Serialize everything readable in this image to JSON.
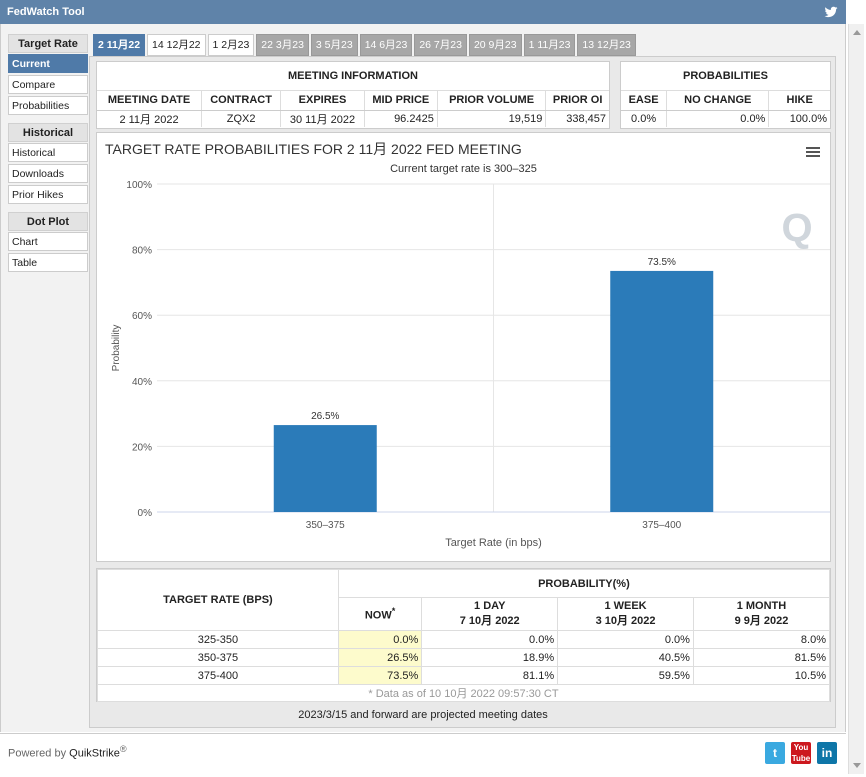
{
  "app": {
    "title": "FedWatch Tool"
  },
  "sidebar": {
    "sections": [
      {
        "header": "Target Rate",
        "items": [
          {
            "label": "Current",
            "active": true
          },
          {
            "label": "Compare"
          },
          {
            "label": "Probabilities"
          }
        ]
      },
      {
        "header": "Historical",
        "items": [
          {
            "label": "Historical"
          },
          {
            "label": "Downloads"
          },
          {
            "label": "Prior Hikes"
          }
        ]
      },
      {
        "header": "Dot Plot",
        "items": [
          {
            "label": "Chart"
          },
          {
            "label": "Table"
          }
        ]
      }
    ]
  },
  "tabs": [
    {
      "label": "2 11月22",
      "state": "selected"
    },
    {
      "label": "14 12月22",
      "state": "light"
    },
    {
      "label": "1 2月23",
      "state": "light"
    },
    {
      "label": "22 3月23",
      "state": "gray"
    },
    {
      "label": "3 5月23",
      "state": "gray"
    },
    {
      "label": "14 6月23",
      "state": "gray"
    },
    {
      "label": "26 7月23",
      "state": "gray"
    },
    {
      "label": "20 9月23",
      "state": "gray"
    },
    {
      "label": "1 11月23",
      "state": "gray"
    },
    {
      "label": "13 12月23",
      "state": "gray"
    }
  ],
  "meeting": {
    "header": "MEETING INFORMATION",
    "columns": [
      "MEETING DATE",
      "CONTRACT",
      "EXPIRES",
      "MID PRICE",
      "PRIOR VOLUME",
      "PRIOR OI"
    ],
    "values": [
      "2 11月 2022",
      "ZQX2",
      "30 11月 2022",
      "96.2425",
      "19,519",
      "338,457"
    ]
  },
  "probabilities": {
    "header": "PROBABILITIES",
    "columns": [
      "EASE",
      "NO CHANGE",
      "HIKE"
    ],
    "values": [
      "0.0%",
      "0.0%",
      "100.0%"
    ]
  },
  "chart_data": {
    "type": "bar",
    "title": "TARGET RATE PROBABILITIES FOR 2 11月 2022 FED MEETING",
    "subtitle": "Current target rate is 300–325",
    "categories": [
      "350–375",
      "375–400"
    ],
    "values": [
      26.5,
      73.5
    ],
    "data_labels": [
      "26.5%",
      "73.5%"
    ],
    "xlabel": "Target Rate (in bps)",
    "ylabel": "Probability",
    "ylim": [
      0,
      100
    ],
    "yticks": [
      "0%",
      "20%",
      "40%",
      "60%",
      "80%",
      "100%"
    ],
    "grid": true,
    "color": "#2b7bb9"
  },
  "bottom_table": {
    "rate_header": "TARGET RATE (BPS)",
    "prob_header": "PROBABILITY(%)",
    "col_now": "NOW",
    "col_now_mark": "*",
    "cols": [
      {
        "l1": "1 DAY",
        "l2": "7 10月 2022"
      },
      {
        "l1": "1 WEEK",
        "l2": "3 10月 2022"
      },
      {
        "l1": "1 MONTH",
        "l2": "9 9月 2022"
      }
    ],
    "rows": [
      {
        "rate": "325-350",
        "now": "0.0%",
        "d": "0.0%",
        "w": "0.0%",
        "m": "8.0%"
      },
      {
        "rate": "350-375",
        "now": "26.5%",
        "d": "18.9%",
        "w": "40.5%",
        "m": "81.5%"
      },
      {
        "rate": "375-400",
        "now": "73.5%",
        "d": "81.1%",
        "w": "59.5%",
        "m": "10.5%"
      }
    ],
    "footnote": "* Data as of 10 10月 2022 09:57:30 CT"
  },
  "projected_note": "2023/3/15 and forward are projected meeting dates",
  "footer": {
    "powered_by": "Powered by",
    "brand": "QuikStrike",
    "reg": "®"
  },
  "social": [
    {
      "icon": "twitter-icon",
      "color": "#3aa9e0"
    },
    {
      "icon": "youtube-icon",
      "color": "#cc181e"
    },
    {
      "icon": "linkedin-icon",
      "color": "#0e76a8"
    }
  ]
}
